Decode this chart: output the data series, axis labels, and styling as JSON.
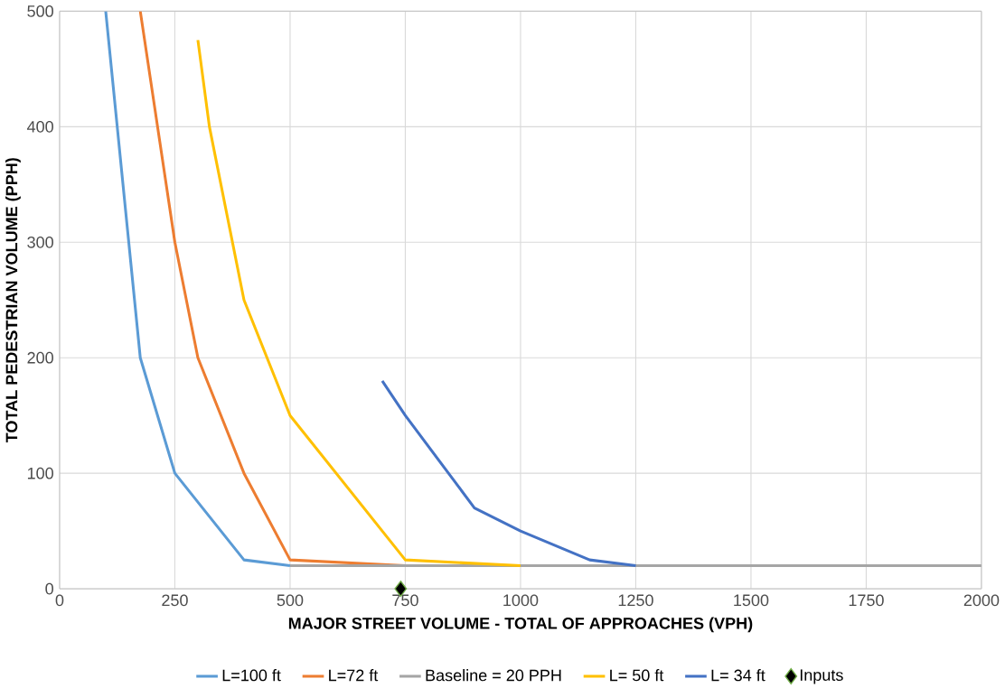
{
  "chart_data": {
    "type": "line",
    "xlabel": "MAJOR STREET VOLUME - TOTAL OF APPROACHES (VPH)",
    "ylabel": "TOTAL PEDESTRIAN VOLUME (PPH)",
    "xlim": [
      0,
      2000
    ],
    "ylim": [
      0,
      500
    ],
    "xticks": [
      0,
      250,
      500,
      750,
      1000,
      1250,
      1500,
      1750,
      2000
    ],
    "yticks": [
      0,
      100,
      200,
      300,
      400,
      500
    ],
    "grid": true,
    "legend": "bottom",
    "marker": "none",
    "line_style": "solid",
    "series": [
      {
        "name": "L=100 ft",
        "color": "#5b9bd5",
        "x": [
          100,
          175,
          250,
          400,
          500
        ],
        "values": [
          500,
          200,
          100,
          25,
          20
        ]
      },
      {
        "name": "L=72 ft",
        "color": "#ed7d31",
        "x": [
          175,
          250,
          300,
          400,
          500,
          750
        ],
        "values": [
          500,
          300,
          200,
          100,
          25,
          20
        ]
      },
      {
        "name": "Baseline = 20 PPH",
        "color": "#a5a5a5",
        "x": [
          500,
          2000
        ],
        "values": [
          20,
          20
        ]
      },
      {
        "name": "L= 50 ft",
        "color": "#ffc000",
        "x": [
          300,
          325,
          400,
          500,
          750,
          1000
        ],
        "values": [
          475,
          400,
          250,
          150,
          25,
          20
        ]
      },
      {
        "name": "L= 34 ft",
        "color": "#4472c4",
        "x": [
          700,
          750,
          900,
          1000,
          1150,
          1250
        ],
        "values": [
          180,
          150,
          70,
          50,
          25,
          20
        ]
      },
      {
        "name": "Inputs",
        "type": "scatter",
        "marker": "diamond",
        "color": "#000000",
        "x": [
          740
        ],
        "values": [
          0
        ]
      }
    ]
  }
}
